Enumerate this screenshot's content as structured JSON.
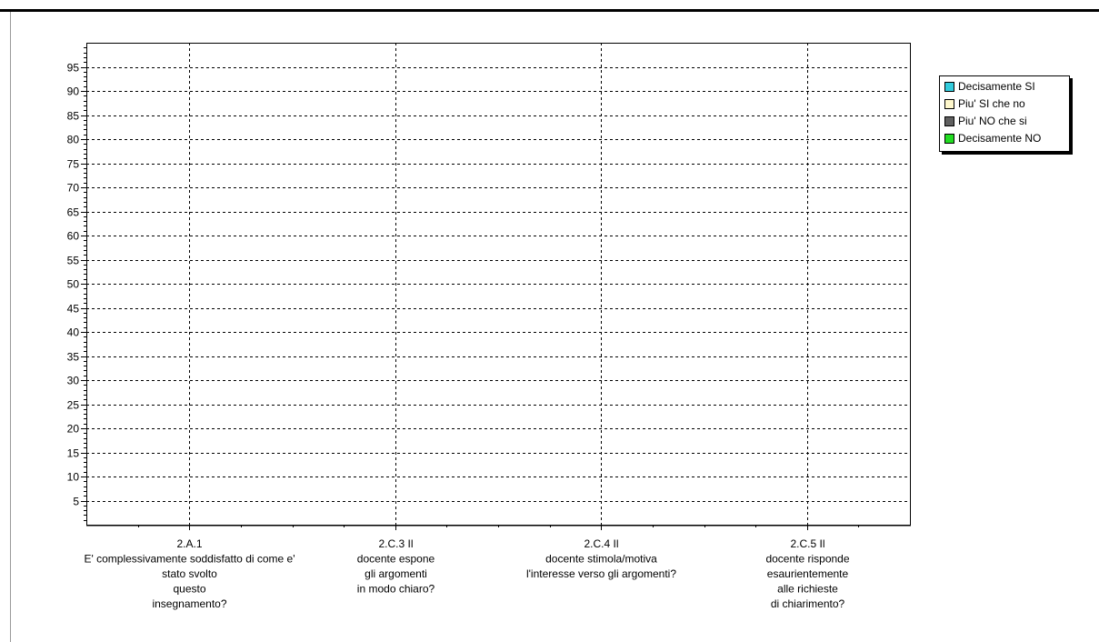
{
  "chart_data": {
    "type": "bar",
    "title": "",
    "xlabel": "",
    "ylabel": "",
    "ylim": [
      0,
      100
    ],
    "yticks": [
      5,
      10,
      15,
      20,
      25,
      30,
      35,
      40,
      45,
      50,
      55,
      60,
      65,
      70,
      75,
      80,
      85,
      90,
      95
    ],
    "grid": true,
    "legend_position": "right",
    "categories": [
      [
        "2.A.1",
        "E' complessivamente soddisfatto di come e'",
        "stato svolto",
        "questo",
        "insegnamento?"
      ],
      [
        "2.C.3 Il",
        "docente espone",
        "gli argomenti",
        "in modo chiaro?"
      ],
      [
        "2.C.4 Il",
        "docente stimola/motiva",
        "l'interesse verso gli argomenti?"
      ],
      [
        "2.C.5 Il",
        "docente risponde",
        "esaurientemente",
        "alle richieste",
        "di chiarimento?"
      ]
    ],
    "series": [
      {
        "name": "Decisamente SI",
        "color": "#33ccdd",
        "values": [
          0,
          0,
          0,
          0
        ]
      },
      {
        "name": "Piu' SI che no",
        "color": "#fff8cc",
        "values": [
          0,
          0,
          0,
          0
        ]
      },
      {
        "name": "Piu' NO che si",
        "color": "#606060",
        "values": [
          0,
          0,
          0,
          0
        ]
      },
      {
        "name": "Decisamente NO",
        "color": "#22dd22",
        "values": [
          0,
          0,
          0,
          0
        ]
      }
    ]
  }
}
